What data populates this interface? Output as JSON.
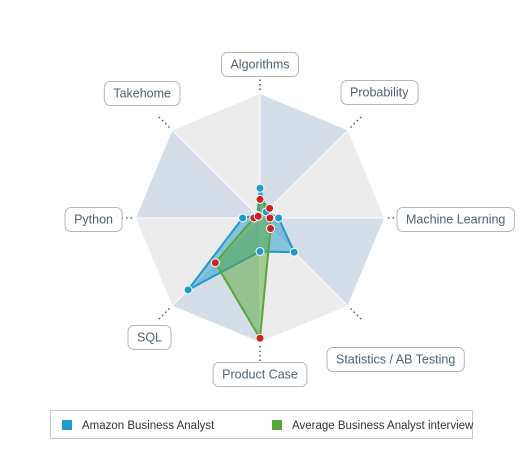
{
  "chart_data": {
    "type": "radar",
    "axes": [
      "Algorithms",
      "Probability",
      "Machine Learning",
      "Statistics / AB Testing",
      "Product Case",
      "SQL",
      "Python",
      "Takehome"
    ],
    "max": 100,
    "series": [
      {
        "name": "Amazon Business Analyst",
        "color": "#1f9ac9",
        "values": [
          24,
          7,
          15,
          39,
          27,
          82,
          14,
          3
        ]
      },
      {
        "name": "Average Business Analyst interview",
        "color": "#56a838",
        "values": [
          15,
          11,
          8,
          12,
          97,
          51,
          5,
          2
        ]
      }
    ],
    "marker_colors": [
      "#1f9ac9",
      "#cc2222"
    ],
    "background_colors": [
      "#d5dde8",
      "#ececec"
    ],
    "legend_position": "bottom"
  }
}
